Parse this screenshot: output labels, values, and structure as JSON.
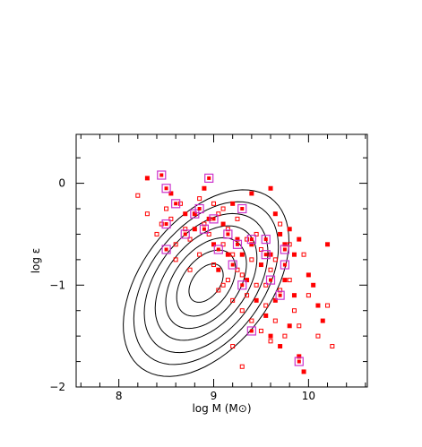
{
  "chart_data": {
    "type": "scatter",
    "xlabel": "log M (M⊙)",
    "ylabel": "log ε",
    "xlim": [
      7.55,
      10.62
    ],
    "ylim": [
      -2.0,
      0.48
    ],
    "xticks": [
      8,
      9,
      10
    ],
    "yticks": [
      0,
      -1,
      -2
    ],
    "xtick_labels": [
      "8",
      "9",
      "10"
    ],
    "ytick_labels": [
      "0",
      "−1",
      "−2"
    ],
    "grid": false,
    "legend": "none",
    "colors": {
      "points": "#ff0000",
      "highlight": "#cc33cc",
      "contour": "#000000"
    },
    "contours": {
      "center": [
        8.92,
        -0.98
      ],
      "semi_major": [
        0.22,
        0.38,
        0.52,
        0.66,
        0.8,
        0.94,
        1.08
      ],
      "semi_minor": [
        0.14,
        0.24,
        0.33,
        0.41,
        0.5,
        0.58,
        0.66
      ],
      "angle_deg": -48
    },
    "series": [
      {
        "marker": "open-square",
        "points": [
          [
            8.2,
            -0.12
          ],
          [
            8.3,
            -0.3
          ],
          [
            8.45,
            -0.4
          ],
          [
            8.55,
            -0.35
          ],
          [
            8.6,
            -0.6
          ],
          [
            8.65,
            -0.2
          ],
          [
            8.7,
            -0.45
          ],
          [
            8.75,
            -0.55
          ],
          [
            8.8,
            -0.3
          ],
          [
            8.85,
            -0.7
          ],
          [
            8.9,
            -0.4
          ],
          [
            8.95,
            -0.5
          ],
          [
            9.0,
            -0.8
          ],
          [
            9.05,
            -0.3
          ],
          [
            9.1,
            -0.6
          ],
          [
            9.15,
            -0.45
          ],
          [
            9.2,
            -0.7
          ],
          [
            9.25,
            -0.35
          ],
          [
            9.3,
            -0.9
          ],
          [
            9.35,
            -0.55
          ],
          [
            9.4,
            -0.75
          ],
          [
            9.45,
            -1.0
          ],
          [
            9.5,
            -0.65
          ],
          [
            9.55,
            -1.2
          ],
          [
            9.6,
            -0.85
          ],
          [
            9.65,
            -1.35
          ],
          [
            9.7,
            -1.05
          ],
          [
            9.75,
            -1.5
          ],
          [
            9.8,
            -0.95
          ],
          [
            9.85,
            -1.25
          ],
          [
            9.9,
            -1.4
          ],
          [
            9.95,
            -0.7
          ],
          [
            10.0,
            -1.1
          ],
          [
            10.1,
            -1.5
          ],
          [
            10.2,
            -1.2
          ],
          [
            10.25,
            -1.6
          ],
          [
            9.1,
            -1.0
          ],
          [
            9.2,
            -1.15
          ],
          [
            9.3,
            -1.25
          ],
          [
            9.4,
            -1.35
          ],
          [
            9.5,
            -1.45
          ],
          [
            9.6,
            -1.55
          ],
          [
            9.2,
            -1.6
          ],
          [
            9.3,
            -1.8
          ],
          [
            9.0,
            -0.2
          ],
          [
            9.1,
            -0.25
          ],
          [
            8.85,
            -0.15
          ],
          [
            8.75,
            -0.85
          ],
          [
            8.6,
            -0.75
          ],
          [
            8.4,
            -0.5
          ],
          [
            8.5,
            -0.25
          ],
          [
            9.7,
            -0.4
          ],
          [
            9.8,
            -0.6
          ],
          [
            9.45,
            -0.5
          ],
          [
            9.35,
            -1.1
          ],
          [
            9.55,
            -1.0
          ],
          [
            9.65,
            -0.75
          ],
          [
            9.25,
            -0.85
          ],
          [
            9.15,
            -0.95
          ],
          [
            9.05,
            -1.05
          ]
        ]
      },
      {
        "marker": "filled-square",
        "points": [
          [
            8.3,
            0.05
          ],
          [
            8.55,
            -0.1
          ],
          [
            8.9,
            -0.05
          ],
          [
            9.2,
            -0.2
          ],
          [
            9.4,
            -0.1
          ],
          [
            9.6,
            -0.05
          ],
          [
            9.65,
            -0.3
          ],
          [
            9.7,
            -0.5
          ],
          [
            9.75,
            -0.6
          ],
          [
            9.8,
            -0.45
          ],
          [
            9.85,
            -0.7
          ],
          [
            9.9,
            -0.55
          ],
          [
            10.0,
            -0.9
          ],
          [
            10.05,
            -1.0
          ],
          [
            10.1,
            -1.2
          ],
          [
            10.15,
            -1.35
          ],
          [
            10.2,
            -0.6
          ],
          [
            9.3,
            -0.7
          ],
          [
            9.35,
            -0.95
          ],
          [
            9.45,
            -1.15
          ],
          [
            9.55,
            -1.3
          ],
          [
            9.6,
            -1.5
          ],
          [
            9.7,
            -1.6
          ],
          [
            9.8,
            -1.4
          ],
          [
            9.9,
            -1.7
          ],
          [
            9.95,
            -1.85
          ],
          [
            9.0,
            -0.6
          ],
          [
            8.95,
            -0.35
          ],
          [
            8.8,
            -0.45
          ],
          [
            8.7,
            -0.3
          ],
          [
            9.1,
            -0.4
          ],
          [
            9.25,
            -0.55
          ],
          [
            9.5,
            -0.8
          ],
          [
            9.85,
            -1.1
          ],
          [
            9.4,
            -0.6
          ],
          [
            9.15,
            -0.7
          ],
          [
            9.05,
            -0.85
          ],
          [
            9.6,
            -0.7
          ],
          [
            9.75,
            -0.95
          ],
          [
            9.65,
            -1.15
          ]
        ]
      },
      {
        "marker": "highlight-square",
        "points": [
          [
            8.45,
            0.08
          ],
          [
            8.5,
            -0.05
          ],
          [
            8.95,
            0.05
          ],
          [
            8.6,
            -0.2
          ],
          [
            8.8,
            -0.3
          ],
          [
            9.0,
            -0.35
          ],
          [
            9.3,
            -0.25
          ],
          [
            8.5,
            -0.4
          ],
          [
            8.7,
            -0.5
          ],
          [
            9.15,
            -0.5
          ],
          [
            9.25,
            -0.6
          ],
          [
            9.4,
            -0.55
          ],
          [
            9.55,
            -0.55
          ],
          [
            9.75,
            -0.65
          ],
          [
            9.75,
            -0.8
          ],
          [
            8.5,
            -0.65
          ],
          [
            8.9,
            -0.45
          ],
          [
            9.05,
            -0.65
          ],
          [
            9.6,
            -0.95
          ],
          [
            9.7,
            -1.1
          ],
          [
            9.3,
            -1.0
          ],
          [
            9.4,
            -1.45
          ],
          [
            9.9,
            -1.75
          ],
          [
            9.2,
            -0.8
          ],
          [
            9.55,
            -0.7
          ],
          [
            8.85,
            -0.25
          ]
        ]
      }
    ]
  }
}
